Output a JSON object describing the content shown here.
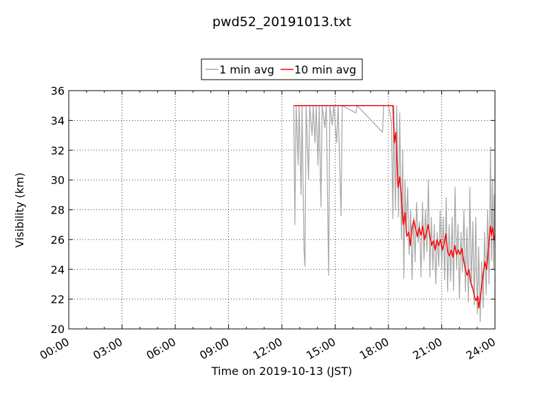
{
  "chart_data": {
    "type": "line",
    "title": "pwd52_20191013.txt",
    "xlabel": "Time on 2019-10-13 (JST)",
    "ylabel": "Visibility (km)",
    "xlim": [
      "00:00",
      "24:00"
    ],
    "ylim": [
      20,
      36
    ],
    "x_ticks": [
      "00:00",
      "03:00",
      "06:00",
      "09:00",
      "12:00",
      "15:00",
      "18:00",
      "21:00",
      "24:00"
    ],
    "y_ticks": [
      20,
      22,
      24,
      26,
      28,
      30,
      32,
      34,
      36
    ],
    "grid": true,
    "legend": "top-center",
    "series": [
      {
        "name": "1 min avg",
        "color": "#a9a9a9",
        "points": [
          [
            "12:40",
            35.0
          ],
          [
            "12:44",
            27.0
          ],
          [
            "12:48",
            35.0
          ],
          [
            "12:55",
            31.0
          ],
          [
            "12:58",
            35.0
          ],
          [
            "13:05",
            29.0
          ],
          [
            "13:08",
            35.0
          ],
          [
            "13:15",
            25.2
          ],
          [
            "13:18",
            24.2
          ],
          [
            "13:22",
            35.0
          ],
          [
            "13:30",
            30.0
          ],
          [
            "13:34",
            35.0
          ],
          [
            "13:42",
            33.0
          ],
          [
            "13:46",
            35.0
          ],
          [
            "13:52",
            32.5
          ],
          [
            "13:56",
            35.0
          ],
          [
            "14:02",
            31.0
          ],
          [
            "14:06",
            35.0
          ],
          [
            "14:12",
            28.2
          ],
          [
            "14:16",
            35.0
          ],
          [
            "14:25",
            33.5
          ],
          [
            "14:30",
            35.0
          ],
          [
            "14:38",
            23.6
          ],
          [
            "14:42",
            35.0
          ],
          [
            "14:50",
            33.7
          ],
          [
            "14:55",
            35.0
          ],
          [
            "15:05",
            32.5
          ],
          [
            "15:10",
            35.0
          ],
          [
            "15:20",
            27.6
          ],
          [
            "15:24",
            35.0
          ],
          [
            "16:10",
            34.5
          ],
          [
            "16:14",
            35.0
          ],
          [
            "17:40",
            33.2
          ],
          [
            "17:44",
            35.0
          ],
          [
            "18:00",
            35.0
          ],
          [
            "18:10",
            34.0
          ],
          [
            "18:15",
            27.4
          ],
          [
            "18:18",
            35.0
          ],
          [
            "18:24",
            28.0
          ],
          [
            "18:28",
            35.0
          ],
          [
            "18:34",
            27.5
          ],
          [
            "18:38",
            34.5
          ],
          [
            "18:44",
            26.0
          ],
          [
            "18:48",
            32.0
          ],
          [
            "18:52",
            23.4
          ],
          [
            "18:56",
            30.0
          ],
          [
            "19:00",
            26.5
          ],
          [
            "19:05",
            29.5
          ],
          [
            "19:10",
            25.0
          ],
          [
            "19:15",
            28.0
          ],
          [
            "19:20",
            23.3
          ],
          [
            "19:25",
            27.5
          ],
          [
            "19:30",
            24.5
          ],
          [
            "19:35",
            28.5
          ],
          [
            "19:40",
            25.8
          ],
          [
            "19:45",
            27.2
          ],
          [
            "19:50",
            23.5
          ],
          [
            "19:55",
            28.5
          ],
          [
            "20:00",
            24.6
          ],
          [
            "20:05",
            28.0
          ],
          [
            "20:10",
            25.2
          ],
          [
            "20:15",
            30.0
          ],
          [
            "20:20",
            23.5
          ],
          [
            "20:25",
            27.5
          ],
          [
            "20:30",
            24.0
          ],
          [
            "20:35",
            27.0
          ],
          [
            "20:40",
            23.0
          ],
          [
            "20:45",
            26.5
          ],
          [
            "20:50",
            24.2
          ],
          [
            "20:55",
            28.0
          ],
          [
            "21:00",
            24.0
          ],
          [
            "21:05",
            27.5
          ],
          [
            "21:10",
            23.3
          ],
          [
            "21:15",
            28.8
          ],
          [
            "21:20",
            22.5
          ],
          [
            "21:25",
            27.0
          ],
          [
            "21:30",
            23.2
          ],
          [
            "21:35",
            27.5
          ],
          [
            "21:40",
            22.6
          ],
          [
            "21:45",
            29.5
          ],
          [
            "21:50",
            24.0
          ],
          [
            "21:55",
            27.0
          ],
          [
            "22:00",
            22.0
          ],
          [
            "22:05",
            26.5
          ],
          [
            "22:10",
            23.8
          ],
          [
            "22:15",
            28.0
          ],
          [
            "22:20",
            22.5
          ],
          [
            "22:25",
            26.8
          ],
          [
            "22:30",
            21.8
          ],
          [
            "22:35",
            29.5
          ],
          [
            "22:40",
            22.8
          ],
          [
            "22:45",
            27.2
          ],
          [
            "22:50",
            21.6
          ],
          [
            "22:55",
            27.5
          ],
          [
            "23:00",
            21.0
          ],
          [
            "23:05",
            25.5
          ],
          [
            "23:10",
            20.5
          ],
          [
            "23:15",
            24.5
          ],
          [
            "23:20",
            21.4
          ],
          [
            "23:25",
            26.5
          ],
          [
            "23:30",
            22.3
          ],
          [
            "23:35",
            28.0
          ],
          [
            "23:40",
            23.0
          ],
          [
            "23:45",
            32.2
          ],
          [
            "23:48",
            24.6
          ],
          [
            "23:52",
            30.0
          ],
          [
            "23:55",
            24.0
          ],
          [
            "23:58",
            29.0
          ],
          [
            "24:00",
            25.5
          ]
        ]
      },
      {
        "name": "10 min avg",
        "color": "#ff0000",
        "points": [
          [
            "12:40",
            35.0
          ],
          [
            "18:15",
            35.0
          ],
          [
            "18:20",
            32.5
          ],
          [
            "18:25",
            33.2
          ],
          [
            "18:32",
            29.5
          ],
          [
            "18:38",
            30.2
          ],
          [
            "18:44",
            28.8
          ],
          [
            "18:50",
            27.0
          ],
          [
            "18:56",
            27.8
          ],
          [
            "19:02",
            26.2
          ],
          [
            "19:08",
            26.5
          ],
          [
            "19:14",
            25.6
          ],
          [
            "19:20",
            26.8
          ],
          [
            "19:26",
            27.3
          ],
          [
            "19:32",
            26.7
          ],
          [
            "19:38",
            26.2
          ],
          [
            "19:44",
            26.8
          ],
          [
            "19:50",
            26.3
          ],
          [
            "19:56",
            26.9
          ],
          [
            "20:02",
            26.0
          ],
          [
            "20:08",
            26.4
          ],
          [
            "20:14",
            27.0
          ],
          [
            "20:20",
            26.2
          ],
          [
            "20:26",
            25.6
          ],
          [
            "20:32",
            25.9
          ],
          [
            "20:38",
            25.3
          ],
          [
            "20:44",
            26.0
          ],
          [
            "20:50",
            25.6
          ],
          [
            "20:56",
            26.0
          ],
          [
            "21:02",
            25.3
          ],
          [
            "21:08",
            25.7
          ],
          [
            "21:14",
            26.4
          ],
          [
            "21:20",
            25.2
          ],
          [
            "21:26",
            24.9
          ],
          [
            "21:32",
            25.3
          ],
          [
            "21:38",
            24.8
          ],
          [
            "21:44",
            25.6
          ],
          [
            "21:50",
            25.0
          ],
          [
            "21:56",
            25.3
          ],
          [
            "22:02",
            25.0
          ],
          [
            "22:08",
            25.4
          ],
          [
            "22:14",
            24.6
          ],
          [
            "22:20",
            24.0
          ],
          [
            "22:26",
            23.6
          ],
          [
            "22:32",
            24.0
          ],
          [
            "22:38",
            23.1
          ],
          [
            "22:44",
            22.8
          ],
          [
            "22:50",
            22.2
          ],
          [
            "22:56",
            21.9
          ],
          [
            "23:02",
            22.2
          ],
          [
            "23:05",
            21.4
          ],
          [
            "23:08",
            21.8
          ],
          [
            "23:14",
            22.7
          ],
          [
            "23:20",
            23.7
          ],
          [
            "23:26",
            24.5
          ],
          [
            "23:32",
            24.0
          ],
          [
            "23:38",
            25.5
          ],
          [
            "23:44",
            26.9
          ],
          [
            "23:48",
            26.3
          ],
          [
            "23:52",
            26.8
          ],
          [
            "23:56",
            26.0
          ],
          [
            "24:00",
            26.3
          ]
        ]
      }
    ]
  }
}
